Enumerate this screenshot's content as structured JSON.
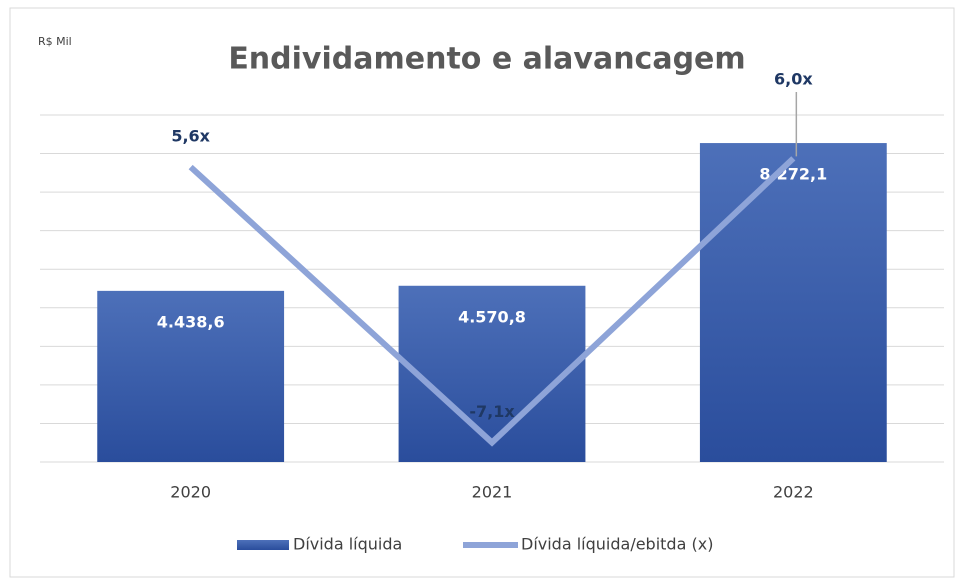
{
  "chart_data": {
    "type": "bar-line",
    "title": "Endividamento e alavancagem",
    "unit_label": "R$ Mil",
    "categories": [
      "2020",
      "2021",
      "2022"
    ],
    "ylim": [
      0,
      9000
    ],
    "yticks": [
      0,
      1000,
      2000,
      3000,
      4000,
      5000,
      6000,
      7000,
      8000,
      9000
    ],
    "y2lim": [
      -8,
      8
    ],
    "grid": true,
    "legend": "bottom",
    "series": [
      {
        "name": "Dívida líquida",
        "type": "bar",
        "color": "#3a5fad",
        "values": [
          4438.6,
          4570.8,
          8272.1
        ],
        "value_labels": [
          "4.438,6",
          "4.570,8",
          "8.272,1"
        ]
      },
      {
        "name": "Dívida líquida/ebitda (x)",
        "type": "line",
        "axis": "y2",
        "color": "#8ea4d8",
        "values": [
          5.6,
          -7.1,
          6.0
        ],
        "value_labels": [
          "5,6x",
          "-7,1x",
          "6,0x"
        ]
      }
    ]
  }
}
